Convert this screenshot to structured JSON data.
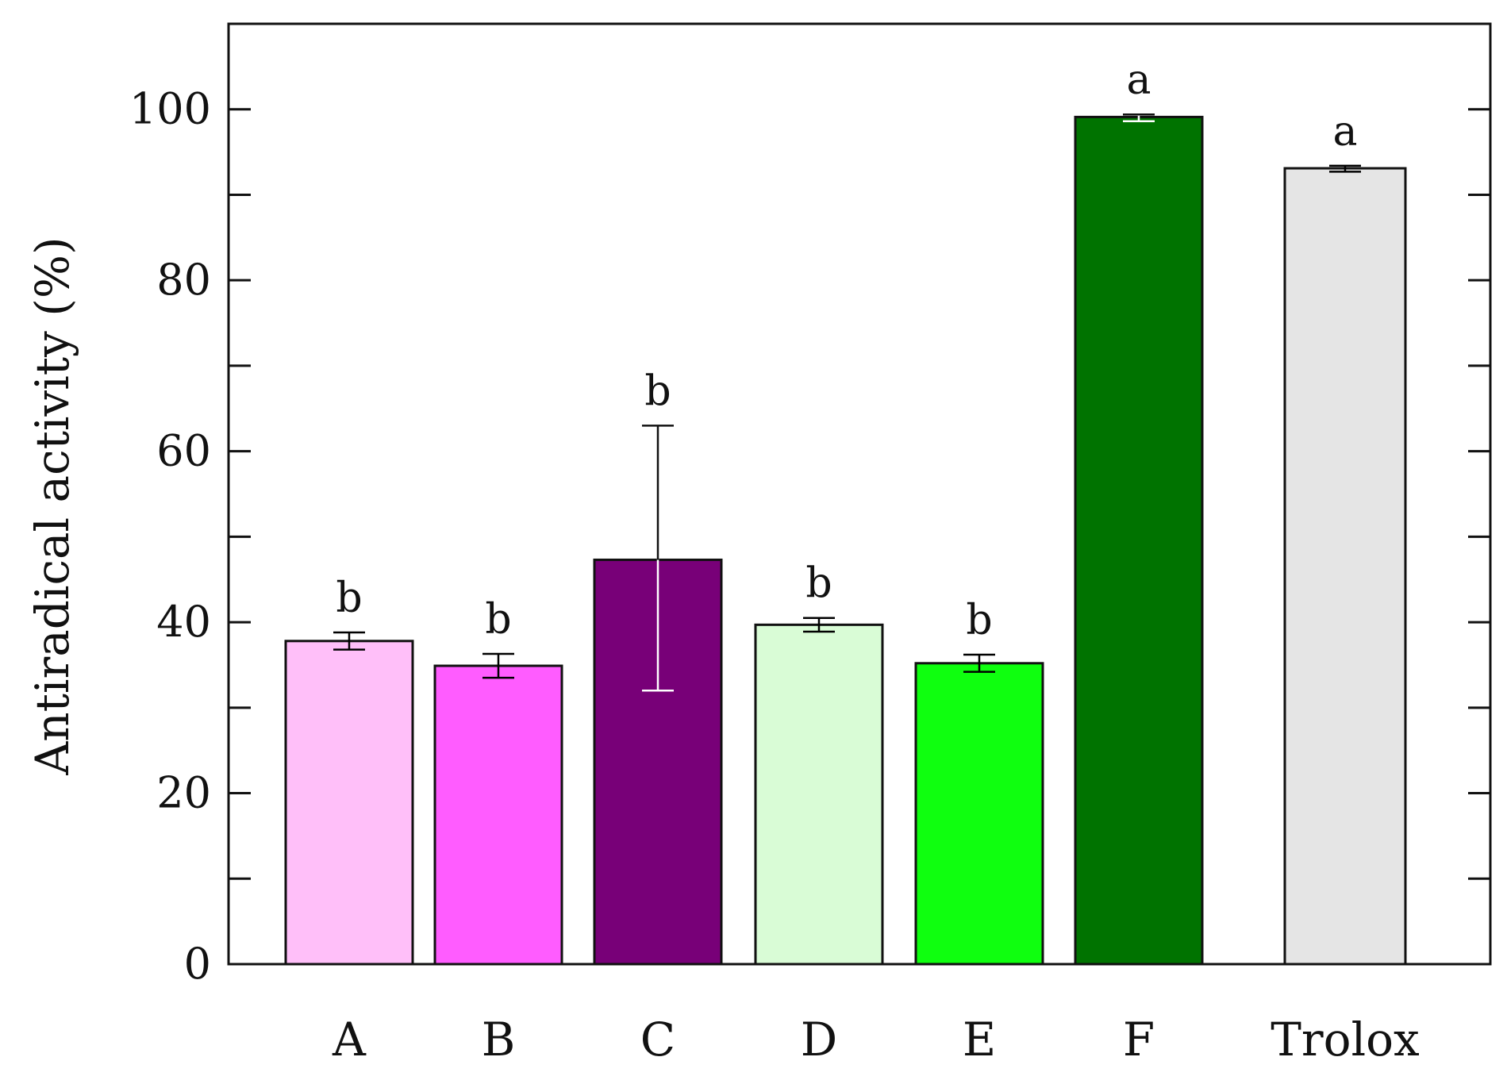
{
  "chart_data": {
    "type": "bar",
    "title": "",
    "xlabel": "",
    "ylabel": "Antiradical activity (%)",
    "ylim": [
      0,
      110
    ],
    "yticks_major": [
      0,
      20,
      40,
      60,
      80,
      100
    ],
    "yticks_minor": [
      10,
      30,
      50,
      70,
      90
    ],
    "grid": false,
    "legend": "none",
    "categories": [
      "A",
      "B",
      "C",
      "D",
      "E",
      "F",
      "Trolox"
    ],
    "values": [
      37.8,
      34.9,
      47.3,
      39.7,
      35.2,
      99.1,
      93.1
    ],
    "error_low": [
      1.0,
      1.4,
      15.3,
      0.8,
      1.0,
      0.5,
      0.4
    ],
    "error_high": [
      1.0,
      1.4,
      15.7,
      0.8,
      1.0,
      0.3,
      0.3
    ],
    "significance_labels": [
      "b",
      "b",
      "b",
      "b",
      "b",
      "a",
      "a"
    ],
    "bar_colors": [
      "#ffbff9",
      "#ff5cff",
      "#780078",
      "#d9fcd6",
      "#0fff0f",
      "#007300",
      "#e5e5e5"
    ],
    "error_bar_colors": [
      "#000000",
      "#000000",
      "#ffffff",
      "#000000",
      "#000000",
      "#ffffff",
      "#000000"
    ]
  }
}
